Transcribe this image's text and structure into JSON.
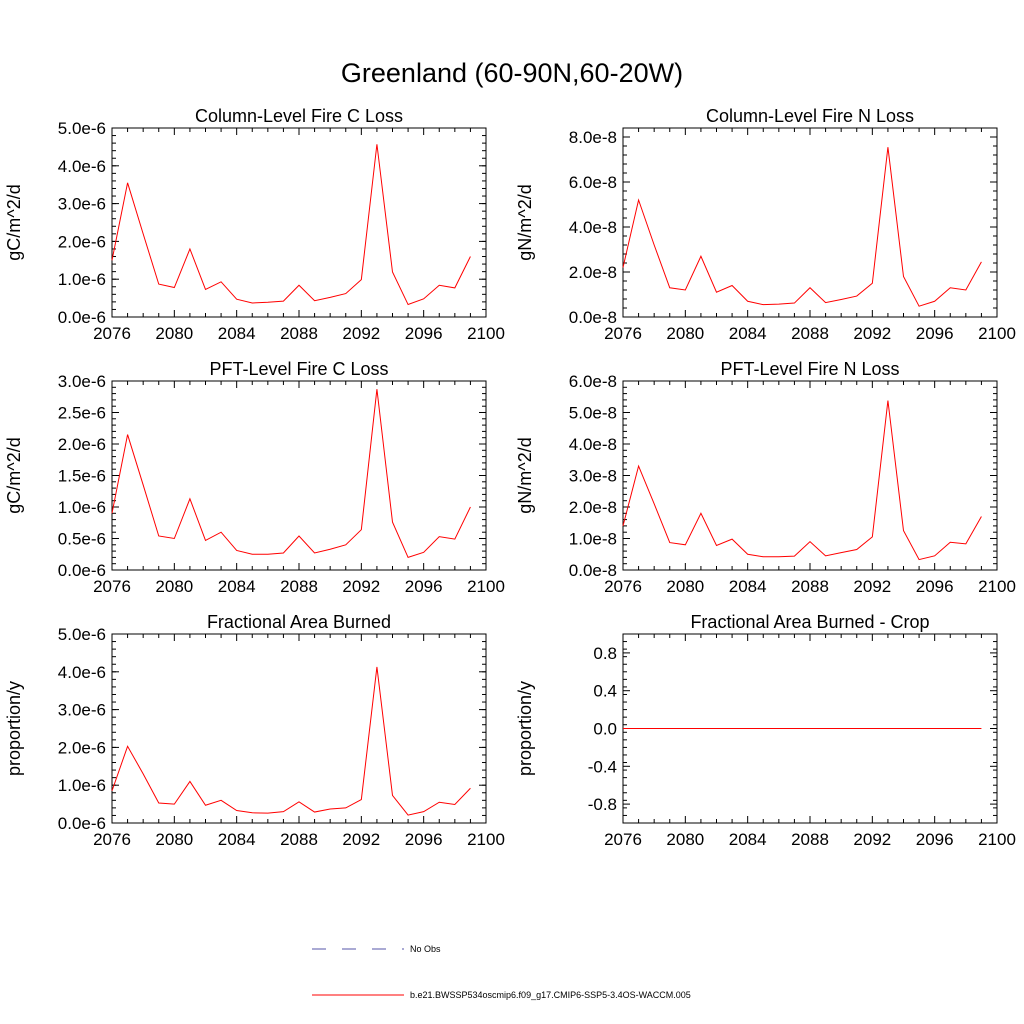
{
  "figure": {
    "title": "Greenland (60-90N,60-20W)",
    "line_color": "#ff0000",
    "obs_color": "#5555aa"
  },
  "legend": {
    "entries": [
      {
        "label": "No Obs",
        "style": "dashed",
        "color": "#5555aa"
      },
      {
        "label": "b.e21.BWSSP534oscmip6.f09_g17.CMIP6-SSP5-3.4OS-WACCM.005",
        "style": "solid",
        "color": "#ff0000"
      }
    ]
  },
  "chart_data": [
    {
      "type": "line",
      "title": "Column-Level Fire C Loss",
      "ylabel": "gC/m^2/d",
      "xlim": [
        2076,
        2100
      ],
      "ylim": [
        0,
        5e-06
      ],
      "xticks": [
        "2076",
        "2080",
        "2084",
        "2088",
        "2092",
        "2096",
        "2100"
      ],
      "yticks": [
        "0.0e-6",
        "1.0e-6",
        "2.0e-6",
        "3.0e-6",
        "4.0e-6",
        "5.0e-6"
      ],
      "x": [
        2076,
        2077,
        2078,
        2079,
        2080,
        2081,
        2082,
        2083,
        2084,
        2085,
        2086,
        2087,
        2088,
        2089,
        2090,
        2091,
        2092,
        2093,
        2094,
        2095,
        2096,
        2097,
        2098,
        2099
      ],
      "y": [
        1.5e-06,
        3.55e-06,
        2.2e-06,
        8.7e-07,
        7.8e-07,
        1.8e-06,
        7.3e-07,
        9.3e-07,
        4.7e-07,
        3.7e-07,
        3.9e-07,
        4.2e-07,
        8.4e-07,
        4.3e-07,
        5.2e-07,
        6.2e-07,
        9.9e-07,
        4.57e-06,
        1.19e-06,
        3.3e-07,
        4.8e-07,
        8.4e-07,
        7.7e-07,
        1.6e-06
      ]
    },
    {
      "type": "line",
      "title": "Column-Level Fire N Loss",
      "ylabel": "gN/m^2/d",
      "xlim": [
        2076,
        2100
      ],
      "ylim": [
        0,
        8.4e-08
      ],
      "xticks": [
        "2076",
        "2080",
        "2084",
        "2088",
        "2092",
        "2096",
        "2100"
      ],
      "yticks": [
        "0.0e-8",
        "2.0e-8",
        "4.0e-8",
        "6.0e-8",
        "8.0e-8"
      ],
      "x": [
        2076,
        2077,
        2078,
        2079,
        2080,
        2081,
        2082,
        2083,
        2084,
        2085,
        2086,
        2087,
        2088,
        2089,
        2090,
        2091,
        2092,
        2093,
        2094,
        2095,
        2096,
        2097,
        2098,
        2099
      ],
      "y": [
        2.2e-08,
        5.2e-08,
        3.2e-08,
        1.3e-08,
        1.2e-08,
        2.7e-08,
        1.1e-08,
        1.4e-08,
        7e-09,
        5.5e-09,
        5.7e-09,
        6.2e-09,
        1.3e-08,
        6.4e-09,
        7.8e-09,
        9.3e-09,
        1.5e-08,
        7.55e-08,
        1.8e-08,
        4.8e-09,
        7e-09,
        1.3e-08,
        1.2e-08,
        2.45e-08
      ]
    },
    {
      "type": "line",
      "title": "PFT-Level Fire C Loss",
      "ylabel": "gC/m^2/d",
      "xlim": [
        2076,
        2100
      ],
      "ylim": [
        0,
        3e-06
      ],
      "xticks": [
        "2076",
        "2080",
        "2084",
        "2088",
        "2092",
        "2096",
        "2100"
      ],
      "yticks": [
        "0.0e-6",
        "0.5e-6",
        "1.0e-6",
        "1.5e-6",
        "2.0e-6",
        "2.5e-6",
        "3.0e-6"
      ],
      "x": [
        2076,
        2077,
        2078,
        2079,
        2080,
        2081,
        2082,
        2083,
        2084,
        2085,
        2086,
        2087,
        2088,
        2089,
        2090,
        2091,
        2092,
        2093,
        2094,
        2095,
        2096,
        2097,
        2098,
        2099
      ],
      "y": [
        9e-07,
        2.15e-06,
        1.35e-06,
        5.4e-07,
        5e-07,
        1.13e-06,
        4.7e-07,
        6e-07,
        3.1e-07,
        2.5e-07,
        2.5e-07,
        2.7e-07,
        5.4e-07,
        2.7e-07,
        3.3e-07,
        4e-07,
        6.4e-07,
        2.87e-06,
        7.6e-07,
        2e-07,
        2.8e-07,
        5.3e-07,
        4.9e-07,
        1e-06
      ]
    },
    {
      "type": "line",
      "title": "PFT-Level Fire N Loss",
      "ylabel": "gN/m^2/d",
      "xlim": [
        2076,
        2100
      ],
      "ylim": [
        0,
        6e-08
      ],
      "xticks": [
        "2076",
        "2080",
        "2084",
        "2088",
        "2092",
        "2096",
        "2100"
      ],
      "yticks": [
        "0.0e-8",
        "1.0e-8",
        "2.0e-8",
        "3.0e-8",
        "4.0e-8",
        "5.0e-8",
        "6.0e-8"
      ],
      "x": [
        2076,
        2077,
        2078,
        2079,
        2080,
        2081,
        2082,
        2083,
        2084,
        2085,
        2086,
        2087,
        2088,
        2089,
        2090,
        2091,
        2092,
        2093,
        2094,
        2095,
        2096,
        2097,
        2098,
        2099
      ],
      "y": [
        1.4e-08,
        3.3e-08,
        2.1e-08,
        8.7e-09,
        8e-09,
        1.8e-08,
        7.8e-09,
        9.8e-09,
        5e-09,
        4.2e-09,
        4.2e-09,
        4.4e-09,
        9e-09,
        4.5e-09,
        5.5e-09,
        6.5e-09,
        1.05e-08,
        5.38e-08,
        1.25e-08,
        3.3e-09,
        4.5e-09,
        8.8e-09,
        8.3e-09,
        1.7e-08
      ]
    },
    {
      "type": "line",
      "title": "Fractional Area Burned",
      "ylabel": "proportion/y",
      "xlim": [
        2076,
        2100
      ],
      "ylim": [
        0,
        5e-06
      ],
      "xticks": [
        "2076",
        "2080",
        "2084",
        "2088",
        "2092",
        "2096",
        "2100"
      ],
      "yticks": [
        "0.0e-6",
        "1.0e-6",
        "2.0e-6",
        "3.0e-6",
        "4.0e-6",
        "5.0e-6"
      ],
      "x": [
        2076,
        2077,
        2078,
        2079,
        2080,
        2081,
        2082,
        2083,
        2084,
        2085,
        2086,
        2087,
        2088,
        2089,
        2090,
        2091,
        2092,
        2093,
        2094,
        2095,
        2096,
        2097,
        2098,
        2099
      ],
      "y": [
        8.5e-07,
        2.03e-06,
        1.3e-06,
        5.3e-07,
        5e-07,
        1.1e-06,
        4.7e-07,
        6e-07,
        3.3e-07,
        2.7e-07,
        2.6e-07,
        3e-07,
        5.6e-07,
        2.9e-07,
        3.7e-07,
        4e-07,
        6.2e-07,
        4.13e-06,
        7.3e-07,
        2.1e-07,
        3e-07,
        5.5e-07,
        4.9e-07,
        9.2e-07
      ]
    },
    {
      "type": "line",
      "title": "Fractional Area Burned - Crop",
      "ylabel": "proportion/y",
      "xlim": [
        2076,
        2100
      ],
      "ylim": [
        -1.0,
        1.0
      ],
      "xticks": [
        "2076",
        "2080",
        "2084",
        "2088",
        "2092",
        "2096",
        "2100"
      ],
      "yticks": [
        "-0.8",
        "-0.4",
        "0.0",
        "0.4",
        "0.8"
      ],
      "x": [
        2076,
        2077,
        2078,
        2079,
        2080,
        2081,
        2082,
        2083,
        2084,
        2085,
        2086,
        2087,
        2088,
        2089,
        2090,
        2091,
        2092,
        2093,
        2094,
        2095,
        2096,
        2097,
        2098,
        2099
      ],
      "y": [
        0,
        0,
        0,
        0,
        0,
        0,
        0,
        0,
        0,
        0,
        0,
        0,
        0,
        0,
        0,
        0,
        0,
        0,
        0,
        0,
        0,
        0,
        0,
        0
      ]
    }
  ]
}
